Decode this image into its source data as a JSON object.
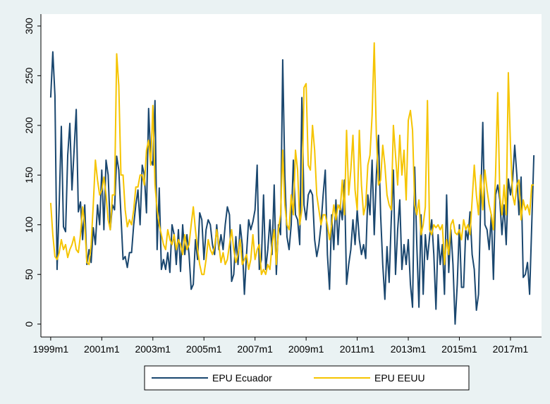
{
  "chart_data": {
    "type": "line",
    "x": [
      468,
      469,
      470,
      471,
      472,
      473,
      474,
      475,
      476,
      477,
      478,
      479,
      480,
      481,
      482,
      483,
      484,
      485,
      486,
      487,
      488,
      489,
      490,
      491,
      492,
      493,
      494,
      495,
      496,
      497,
      498,
      499,
      500,
      501,
      502,
      503,
      504,
      505,
      506,
      507,
      508,
      509,
      510,
      511,
      512,
      513,
      514,
      515,
      516,
      517,
      518,
      519,
      520,
      521,
      522,
      523,
      524,
      525,
      526,
      527,
      528,
      529,
      530,
      531,
      532,
      533,
      534,
      535,
      536,
      537,
      538,
      539,
      540,
      541,
      542,
      543,
      544,
      545,
      546,
      547,
      548,
      549,
      550,
      551,
      552,
      553,
      554,
      555,
      556,
      557,
      558,
      559,
      560,
      561,
      562,
      563,
      564,
      565,
      566,
      567,
      568,
      569,
      570,
      571,
      572,
      573,
      574,
      575,
      576,
      577,
      578,
      579,
      580,
      581,
      582,
      583,
      584,
      585,
      586,
      587,
      588,
      589,
      590,
      591,
      592,
      593,
      594,
      595,
      596,
      597,
      598,
      599,
      600,
      601,
      602,
      603,
      604,
      605,
      606,
      607,
      608,
      609,
      610,
      611,
      612,
      613,
      614,
      615,
      616,
      617,
      618,
      619,
      620,
      621,
      622,
      623,
      624,
      625,
      626,
      627,
      628,
      629,
      630,
      631,
      632,
      633,
      634,
      635,
      636,
      637,
      638,
      639,
      640,
      641,
      642,
      643,
      644,
      645,
      646,
      647,
      648,
      649,
      650,
      651,
      652,
      653,
      654,
      655,
      656,
      657,
      658,
      659,
      660,
      661,
      662,
      663,
      664,
      665,
      666,
      667,
      668,
      669,
      670,
      671,
      672,
      673,
      674,
      675,
      676,
      677,
      678,
      679,
      680,
      681,
      682,
      683,
      684,
      685,
      686,
      687,
      688,
      689,
      690,
      691,
      692,
      693,
      694,
      695
    ],
    "series": [
      {
        "name": "EPU Ecuador",
        "color": "#1a476f",
        "values": [
          228,
          274,
          230,
          55,
          120,
          199,
          98,
          93,
          170,
          202,
          135,
          175,
          216,
          113,
          123,
          85,
          120,
          60,
          75,
          62,
          97,
          80,
          120,
          100,
          155,
          95,
          165,
          150,
          95,
          120,
          115,
          169,
          155,
          110,
          65,
          68,
          57,
          72,
          72,
          100,
          120,
          135,
          100,
          160,
          150,
          112,
          217,
          165,
          160,
          225,
          75,
          137,
          55,
          65,
          55,
          72,
          52,
          100,
          90,
          60,
          95,
          53,
          100,
          70,
          90,
          70,
          35,
          40,
          85,
          65,
          112,
          105,
          65,
          95,
          105,
          100,
          80,
          70,
          100,
          75,
          90,
          75,
          100,
          118,
          110,
          43,
          50,
          88,
          60,
          100,
          80,
          30,
          70,
          105,
          95,
          103,
          115,
          160,
          55,
          65,
          130,
          55,
          75,
          105,
          70,
          140,
          50,
          100,
          90,
          266,
          150,
          88,
          75,
          100,
          165,
          110,
          105,
          80,
          228,
          120,
          105,
          130,
          135,
          130,
          85,
          68,
          80,
          100,
          130,
          155,
          70,
          35,
          110,
          75,
          125,
          80,
          120,
          105,
          145,
          40,
          60,
          75,
          105,
          80,
          115,
          85,
          70,
          80,
          66,
          130,
          110,
          165,
          90,
          150,
          190,
          110,
          60,
          25,
          78,
          42,
          105,
          155,
          50,
          95,
          125,
          55,
          80,
          60,
          85,
          40,
          17,
          158,
          80,
          17,
          110,
          30,
          90,
          65,
          88,
          105,
          70,
          15,
          90,
          60,
          80,
          30,
          130,
          52,
          95,
          60,
          0,
          40,
          100,
          37,
          37,
          95,
          85,
          113,
          70,
          55,
          14,
          30,
          120,
          203,
          100,
          95,
          75,
          110,
          45,
          130,
          140,
          125,
          90,
          120,
          80,
          146,
          130,
          145,
          180,
          150,
          110,
          148,
          47,
          50,
          62,
          30,
          100,
          170
        ]
      },
      {
        "name": "EPU EEUU",
        "color": "#f5c400",
        "values": [
          122,
          90,
          68,
          65,
          72,
          85,
          75,
          80,
          67,
          75,
          80,
          88,
          75,
          72,
          90,
          118,
          100,
          62,
          60,
          80,
          120,
          165,
          145,
          130,
          135,
          148,
          130,
          105,
          95,
          130,
          130,
          272,
          240,
          150,
          150,
          115,
          98,
          105,
          100,
          115,
          138,
          138,
          150,
          150,
          140,
          175,
          185,
          160,
          220,
          140,
          115,
          100,
          90,
          80,
          75,
          95,
          85,
          80,
          90,
          75,
          85,
          80,
          70,
          90,
          75,
          80,
          100,
          118,
          95,
          75,
          60,
          50,
          50,
          65,
          85,
          75,
          70,
          78,
          95,
          80,
          62,
          72,
          60,
          65,
          80,
          95,
          75,
          62,
          70,
          85,
          60,
          65,
          70,
          55,
          65,
          90,
          65,
          75,
          80,
          50,
          55,
          50,
          60,
          55,
          80,
          95,
          60,
          95,
          110,
          175,
          120,
          100,
          95,
          130,
          110,
          175,
          155,
          100,
          115,
          238,
          242,
          160,
          155,
          200,
          175,
          130,
          115,
          100,
          110,
          110,
          100,
          85,
          100,
          120,
          105,
          120,
          115,
          145,
          110,
          195,
          130,
          155,
          190,
          135,
          115,
          195,
          140,
          110,
          120,
          160,
          170,
          210,
          283,
          190,
          140,
          145,
          180,
          160,
          130,
          120,
          115,
          200,
          170,
          140,
          190,
          150,
          175,
          125,
          205,
          215,
          195,
          120,
          110,
          125,
          90,
          100,
          118,
          225,
          95,
          90,
          100,
          97,
          100,
          95,
          100,
          60,
          85,
          70,
          100,
          105,
          92,
          90,
          95,
          85,
          105,
          95,
          100,
          90,
          125,
          160,
          130,
          110,
          150,
          115,
          155,
          135,
          120,
          110,
          95,
          150,
          233,
          130,
          110,
          140,
          110,
          253,
          180,
          130,
          120,
          140,
          145,
          105,
          125,
          115,
          120,
          110,
          140,
          140
        ]
      }
    ],
    "xlim": [
      463.4,
      698.6
    ],
    "xticks": [
      {
        "value": 468,
        "label": "1999m1"
      },
      {
        "value": 492,
        "label": "2001m1"
      },
      {
        "value": 516,
        "label": "2003m1"
      },
      {
        "value": 540,
        "label": "2005m1"
      },
      {
        "value": 564,
        "label": "2007m1"
      },
      {
        "value": 588,
        "label": "2009m1"
      },
      {
        "value": 612,
        "label": "2011m1"
      },
      {
        "value": 636,
        "label": "2013m1"
      },
      {
        "value": 660,
        "label": "2015m1"
      },
      {
        "value": 684,
        "label": "2017m1"
      }
    ],
    "ylim": [
      -13,
      312
    ],
    "yticks": [
      0,
      50,
      100,
      150,
      200,
      250,
      300
    ]
  }
}
